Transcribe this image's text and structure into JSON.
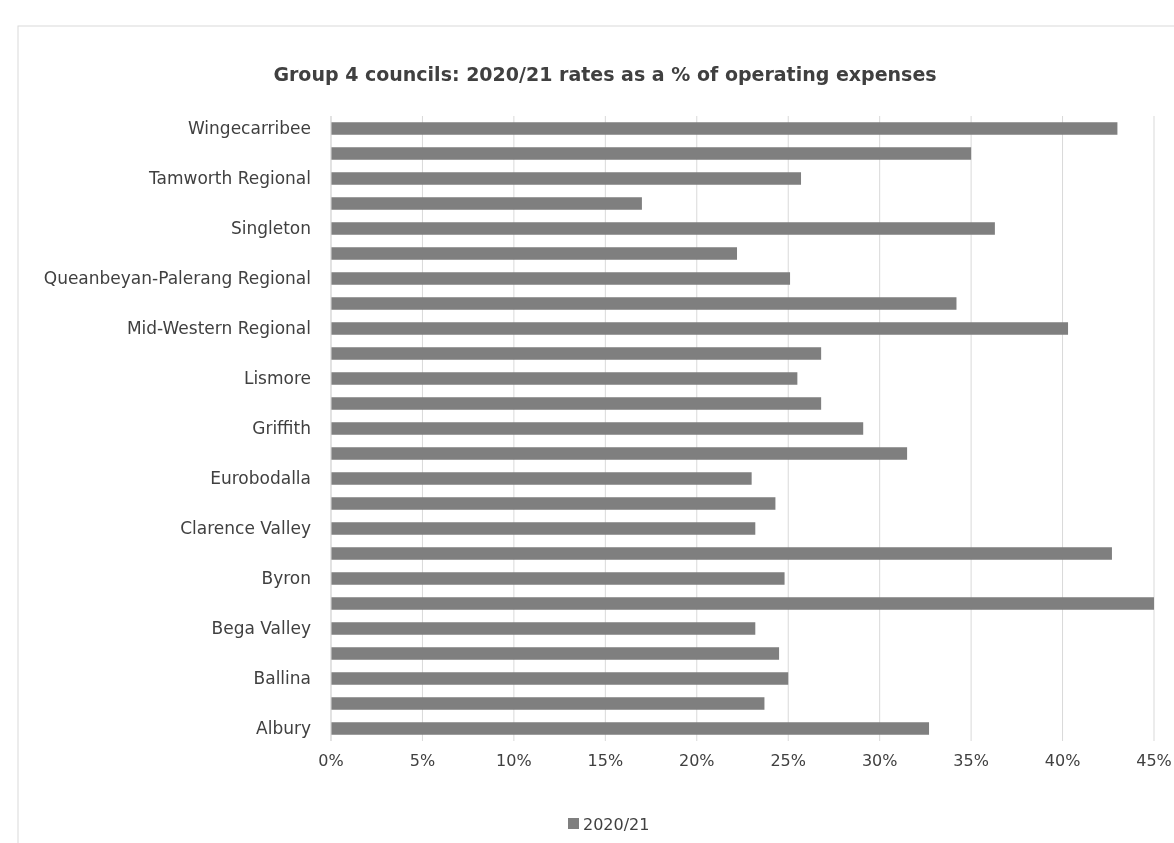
{
  "chart_data": {
    "type": "bar",
    "orientation": "horizontal",
    "title": "Group 4 councils: 2020/21 rates as a % of operating expenses",
    "categories": [
      "Wingecarribee",
      null,
      "Tamworth Regional",
      null,
      "Singleton",
      null,
      "Queanbeyan-Palerang Regional",
      null,
      "Mid-Western Regional",
      null,
      "Lismore",
      null,
      "Griffith",
      null,
      "Eurobodalla",
      null,
      "Clarence Valley",
      null,
      "Byron",
      null,
      "Bega Valley",
      null,
      "Ballina",
      null,
      "Albury"
    ],
    "series": [
      {
        "name": "2020/21",
        "color": "#7f7f7f",
        "values": [
          43.0,
          35.0,
          25.7,
          17.0,
          36.3,
          22.2,
          25.1,
          34.2,
          40.3,
          26.8,
          25.5,
          26.8,
          29.1,
          31.5,
          23.0,
          24.3,
          23.2,
          42.7,
          24.8,
          45.0,
          23.2,
          24.5,
          25.0,
          23.7,
          32.7
        ]
      }
    ],
    "xlim": [
      0,
      45
    ],
    "xticks": [
      {
        "value": 0,
        "label": "0%"
      },
      {
        "value": 5,
        "label": "5%"
      },
      {
        "value": 10,
        "label": "10%"
      },
      {
        "value": 15,
        "label": "15%"
      },
      {
        "value": 20,
        "label": "20%"
      },
      {
        "value": 25,
        "label": "25%"
      },
      {
        "value": 30,
        "label": "30%"
      },
      {
        "value": 35,
        "label": "35%"
      },
      {
        "value": 40,
        "label": "40%"
      },
      {
        "value": 45,
        "label": "45%"
      }
    ],
    "grid": "x",
    "legend": "bottom"
  }
}
